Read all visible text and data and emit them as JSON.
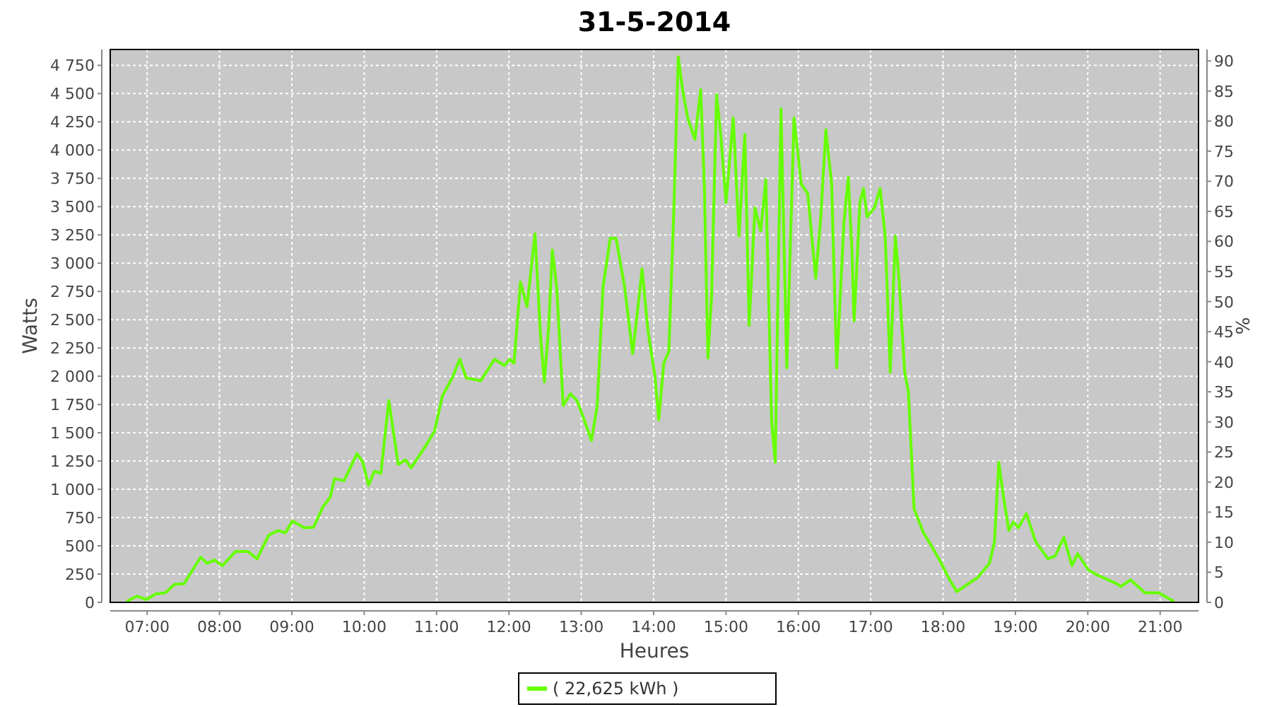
{
  "chart_data": {
    "type": "line",
    "title": "31-5-2014",
    "xlabel": "Heures",
    "ylabel": "Watts",
    "y2label": "%",
    "xlim": [
      6.49,
      21.53
    ],
    "xticks": [
      {
        "value": 7,
        "label": "07:00"
      },
      {
        "value": 8,
        "label": "08:00"
      },
      {
        "value": 9,
        "label": "09:00"
      },
      {
        "value": 10,
        "label": "10:00"
      },
      {
        "value": 11,
        "label": "11:00"
      },
      {
        "value": 12,
        "label": "12:00"
      },
      {
        "value": 13,
        "label": "13:00"
      },
      {
        "value": 14,
        "label": "14:00"
      },
      {
        "value": 15,
        "label": "15:00"
      },
      {
        "value": 16,
        "label": "16:00"
      },
      {
        "value": 17,
        "label": "17:00"
      },
      {
        "value": 18,
        "label": "18:00"
      },
      {
        "value": 19,
        "label": "19:00"
      },
      {
        "value": 20,
        "label": "20:00"
      },
      {
        "value": 21,
        "label": "21:00"
      }
    ],
    "ylim": [
      0,
      4890
    ],
    "yticks": [
      0,
      250,
      500,
      750,
      {
        "value": 1000,
        "label": "1 000"
      },
      {
        "value": 1250,
        "label": "1 250"
      },
      {
        "value": 1500,
        "label": "1 500"
      },
      {
        "value": 1750,
        "label": "1 750"
      },
      {
        "value": 2000,
        "label": "2 000"
      },
      {
        "value": 2250,
        "label": "2 250"
      },
      {
        "value": 2500,
        "label": "2 500"
      },
      {
        "value": 2750,
        "label": "2 750"
      },
      {
        "value": 3000,
        "label": "3 000"
      },
      {
        "value": 3250,
        "label": "3 250"
      },
      {
        "value": 3500,
        "label": "3 500"
      },
      {
        "value": 3750,
        "label": "3 750"
      },
      {
        "value": 4000,
        "label": "4 000"
      },
      {
        "value": 4250,
        "label": "4 250"
      },
      {
        "value": 4500,
        "label": "4 500"
      },
      {
        "value": 4750,
        "label": "4 750"
      }
    ],
    "y2lim": [
      0,
      91.9
    ],
    "y2ticks": [
      0,
      5,
      10,
      15,
      20,
      25,
      30,
      35,
      40,
      45,
      50,
      55,
      60,
      65,
      70,
      75,
      80,
      85,
      90
    ],
    "grid": true,
    "legend": "bottom",
    "line_style": "solid",
    "marker": "none",
    "series": [
      {
        "name": "( 22,625 kWh )",
        "color": "#66ff00",
        "x": [
          6.73,
          6.86,
          6.99,
          7.12,
          7.25,
          7.38,
          7.51,
          7.74,
          7.83,
          7.93,
          8.04,
          8.22,
          8.39,
          8.52,
          8.68,
          8.81,
          8.91,
          9.01,
          9.17,
          9.3,
          9.43,
          9.53,
          9.59,
          9.72,
          9.9,
          9.98,
          10.06,
          10.14,
          10.23,
          10.34,
          10.47,
          10.57,
          10.65,
          10.83,
          10.97,
          11.08,
          11.22,
          11.32,
          11.41,
          11.61,
          11.8,
          11.94,
          12.01,
          12.07,
          12.16,
          12.25,
          12.36,
          12.44,
          12.49,
          12.55,
          12.6,
          12.66,
          12.75,
          12.85,
          12.94,
          13.04,
          13.14,
          13.22,
          13.3,
          13.4,
          13.48,
          13.6,
          13.71,
          13.77,
          13.84,
          13.92,
          14.02,
          14.07,
          14.14,
          14.21,
          14.28,
          14.34,
          14.4,
          14.47,
          14.57,
          14.65,
          14.7,
          14.75,
          14.8,
          14.87,
          14.93,
          15.0,
          15.1,
          15.18,
          15.26,
          15.32,
          15.4,
          15.48,
          15.55,
          15.63,
          15.68,
          15.76,
          15.84,
          15.94,
          16.04,
          16.13,
          16.24,
          16.31,
          16.38,
          16.46,
          16.53,
          16.63,
          16.69,
          16.74,
          16.77,
          16.8,
          16.85,
          16.9,
          16.95,
          17.05,
          17.13,
          17.2,
          17.27,
          17.34,
          17.39,
          17.47,
          17.52,
          17.6,
          17.73,
          17.83,
          17.96,
          18.09,
          18.19,
          18.35,
          18.48,
          18.64,
          18.71,
          18.77,
          18.84,
          18.91,
          18.97,
          19.04,
          19.15,
          19.28,
          19.45,
          19.55,
          19.67,
          19.78,
          19.86,
          20.01,
          20.14,
          20.4,
          20.46,
          20.59,
          20.79,
          20.98,
          21.18
        ],
        "values": [
          12,
          55,
          25,
          75,
          85,
          160,
          165,
          400,
          345,
          375,
          325,
          450,
          450,
          385,
          595,
          635,
          615,
          720,
          660,
          665,
          845,
          930,
          1095,
          1075,
          1315,
          1240,
          1035,
          1160,
          1140,
          1785,
          1220,
          1260,
          1190,
          1365,
          1510,
          1825,
          1990,
          2150,
          1985,
          1960,
          2150,
          2095,
          2150,
          2115,
          2835,
          2615,
          3260,
          2325,
          1950,
          2450,
          3115,
          2785,
          1740,
          1845,
          1785,
          1615,
          1430,
          1740,
          2785,
          3220,
          3220,
          2785,
          2200,
          2535,
          2950,
          2410,
          1990,
          1615,
          2115,
          2220,
          3490,
          4825,
          4535,
          4285,
          4095,
          4535,
          3700,
          2160,
          2700,
          4490,
          4115,
          3535,
          4285,
          3240,
          4140,
          2450,
          3490,
          3285,
          3740,
          1615,
          1240,
          4365,
          2075,
          4285,
          3700,
          3615,
          2865,
          3410,
          4180,
          3700,
          2075,
          3365,
          3760,
          3115,
          2490,
          2865,
          3535,
          3660,
          3410,
          3490,
          3660,
          3240,
          2035,
          3240,
          2865,
          2035,
          1865,
          825,
          615,
          510,
          365,
          200,
          95,
          165,
          220,
          345,
          535,
          1240,
          910,
          635,
          710,
          660,
          785,
          535,
          385,
          410,
          575,
          325,
          430,
          285,
          240,
          165,
          140,
          200,
          85,
          85,
          12
        ]
      }
    ]
  }
}
